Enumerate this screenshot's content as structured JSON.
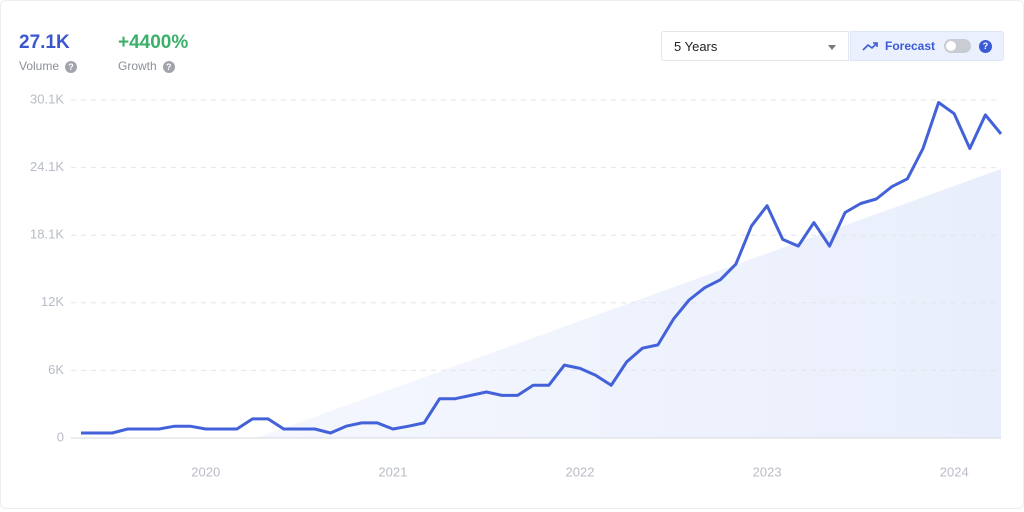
{
  "header": {
    "volume": "27.1K",
    "volume_label": "Volume",
    "growth": "+4400%",
    "growth_label": "Growth"
  },
  "controls": {
    "period": "5 Years",
    "forecast": "Forecast"
  },
  "chart_data": {
    "type": "line",
    "color": "#4361d8",
    "grid": true,
    "categories": [
      null,
      null,
      null,
      null,
      null,
      null,
      null,
      null,
      "2020",
      null,
      null,
      null,
      null,
      null,
      null,
      null,
      null,
      null,
      null,
      null,
      "2021",
      null,
      null,
      null,
      null,
      null,
      null,
      null,
      null,
      null,
      null,
      null,
      "2022",
      null,
      null,
      null,
      null,
      null,
      null,
      null,
      null,
      null,
      null,
      null,
      "2023",
      null,
      null,
      null,
      null,
      null,
      null,
      null,
      null,
      null,
      null,
      null,
      "2024",
      null,
      null,
      null
    ],
    "values": [
      450,
      450,
      450,
      800,
      800,
      800,
      1050,
      1050,
      800,
      800,
      800,
      1700,
      1700,
      800,
      800,
      800,
      450,
      1050,
      1350,
      1350,
      800,
      1050,
      1350,
      3500,
      3500,
      3800,
      4100,
      3800,
      3800,
      4700,
      4700,
      6500,
      6200,
      5600,
      4700,
      6800,
      8000,
      8300,
      10600,
      12300,
      13400,
      14100,
      15500,
      18900,
      20700,
      17700,
      17100,
      19200,
      17100,
      20100,
      20900,
      21300,
      22400,
      23100,
      25800,
      29900,
      28900,
      25800,
      28800,
      27100
    ],
    "ylim": [
      0,
      30125
    ],
    "yticks": [
      0,
      {
        "value": 6025,
        "label": "6K"
      },
      {
        "value": 12050,
        "label": "12K"
      },
      {
        "value": 18075,
        "label": "18.1K"
      },
      {
        "value": 24100,
        "label": "24.1K"
      },
      {
        "value": 30125,
        "label": "30.1K"
      }
    ]
  }
}
